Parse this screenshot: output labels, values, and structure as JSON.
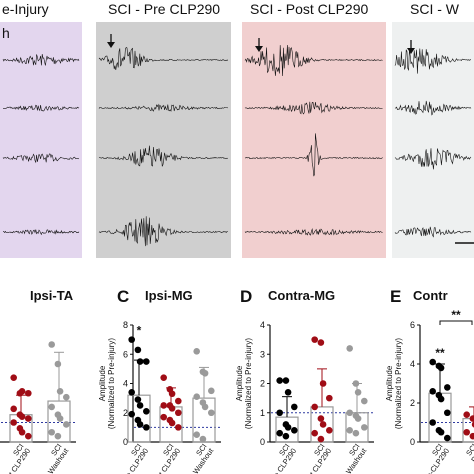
{
  "colors": {
    "pre_injury_bg": "#e3d6ee",
    "pre_clp290_bg": "#cfcfcf",
    "post_clp290_bg": "#f1cfcf",
    "washout_bg": "#eef0f0",
    "dot_black": "#000000",
    "dot_red": "#a00d16",
    "dot_gray": "#9a9a9a",
    "reference_line": "#2f3aa0"
  },
  "traces": {
    "conditions": [
      "e-Injury",
      "SCI - Pre CLP290",
      "SCI - Post CLP290",
      "SCI - W"
    ],
    "corner_label": "h"
  },
  "chart_data": [
    {
      "type": "bar",
      "panel": "",
      "title": "Ipsi-TA",
      "ylabel": "",
      "categories": [
        [
          "SCI",
          "Post CLP290"
        ],
        [
          "SCI",
          "Washout"
        ]
      ],
      "category_labels": [
        "SCI Post CLP290",
        "SCI Washout"
      ],
      "ylim": [
        0,
        6
      ],
      "reference_line": 1,
      "bars": [
        {
          "mean": 1.4,
          "sd": 1.0
        },
        {
          "mean": 2.1,
          "sd": 2.5
        }
      ],
      "points": [
        [
          3.3,
          2.5,
          2.6,
          2.5,
          1.7,
          1.4,
          1.3,
          1.2,
          1.0,
          0.7,
          0.5,
          0.3
        ],
        [
          5.0,
          4.0,
          2.6,
          2.3,
          1.8,
          1.4,
          1.2,
          0.9,
          0.5,
          0.3
        ]
      ],
      "point_colors": [
        "dot_red",
        "dot_gray"
      ]
    },
    {
      "type": "bar",
      "panel": "C",
      "title": "Ipsi-MG",
      "ylabel": "Amplitude\n(Normalized to Pre-injury)",
      "yticks": [
        0,
        2,
        4,
        6,
        8
      ],
      "categories": [
        [
          "SCI",
          "Pre CLP290"
        ],
        [
          "SCI",
          "Post CLP290"
        ],
        [
          "SCI",
          "Washout"
        ]
      ],
      "category_labels": [
        "SCI Pre CLP290",
        "SCI Post CLP290",
        "SCI Washout"
      ],
      "ylim": [
        0,
        8
      ],
      "reference_line": 1,
      "significance": [
        {
          "category": 0,
          "label": "*"
        }
      ],
      "bars": [
        {
          "mean": 3.2,
          "sd": 2.4
        },
        {
          "mean": 2.4,
          "sd": 1.3
        },
        {
          "mean": 3.0,
          "sd": 2.1
        }
      ],
      "points": [
        [
          7.0,
          6.3,
          5.5,
          5.5,
          3.4,
          2.9,
          2.5,
          2.1,
          1.9,
          1.5,
          1.2,
          1.0
        ],
        [
          4.4,
          3.6,
          3.3,
          2.8,
          2.5,
          2.5,
          2.3,
          2.0,
          1.7,
          1.5,
          1.3,
          1.0
        ],
        [
          6.2,
          4.8,
          4.7,
          3.5,
          3.1,
          2.7,
          2.4,
          2.0,
          0.5,
          0.2
        ]
      ],
      "point_colors": [
        "dot_black",
        "dot_red",
        "dot_gray"
      ]
    },
    {
      "type": "bar",
      "panel": "D",
      "title": "Contra-MG",
      "ylabel": "Amplitude\n(Normalized to Pre-injury)",
      "yticks": [
        0,
        1,
        2,
        3,
        4
      ],
      "categories": [
        [
          "SCI",
          "Pre CLP290"
        ],
        [
          "SCI",
          "Post CLP290"
        ],
        [
          "SCI",
          "Washout"
        ]
      ],
      "category_labels": [
        "SCI Pre CLP290",
        "SCI Post CLP290",
        "SCI Washout"
      ],
      "ylim": [
        0,
        4
      ],
      "reference_line": 1,
      "bars": [
        {
          "mean": 0.85,
          "sd": 0.7
        },
        {
          "mean": 1.2,
          "sd": 1.3
        },
        {
          "mean": 1.0,
          "sd": 1.0
        }
      ],
      "points": [
        [
          2.1,
          2.1,
          1.7,
          1.2,
          1.0,
          0.6,
          0.5,
          0.4,
          0.3,
          0.2
        ],
        [
          3.5,
          3.4,
          2.0,
          1.5,
          1.2,
          0.8,
          0.6,
          0.4,
          0.3,
          0.1
        ],
        [
          3.2,
          2.0,
          1.7,
          1.4,
          1.0,
          0.9,
          0.8,
          0.5,
          0.4,
          0.3
        ]
      ],
      "point_colors": [
        "dot_black",
        "dot_red",
        "dot_gray"
      ]
    },
    {
      "type": "bar",
      "panel": "E",
      "title": "Contr",
      "ylabel": "Amplitude\n(Normalized to Pre-injury)",
      "yticks": [
        0,
        2,
        4,
        6
      ],
      "categories": [
        [
          "SCI",
          "Pre-CLP290"
        ],
        [
          "SCI",
          "Post"
        ]
      ],
      "category_labels": [
        "SCI Pre-CLP290",
        "SCI Post"
      ],
      "ylim": [
        0,
        6
      ],
      "reference_line": 1,
      "significance": [
        {
          "category": 0,
          "label": "**"
        },
        {
          "bracket": [
            0,
            1
          ],
          "label": "**"
        }
      ],
      "bars": [
        {
          "mean": 2.5,
          "sd": 1.5
        },
        {
          "mean": 1.2,
          "sd": 0.6
        }
      ],
      "points": [
        [
          4.1,
          3.9,
          3.8,
          2.8,
          2.6,
          2.4,
          2.2,
          1.5,
          1.0,
          0.6,
          0.5,
          0.2
        ],
        [
          1.4,
          1.2,
          0.9,
          0.7,
          0.5,
          0.3
        ]
      ],
      "point_colors": [
        "dot_black",
        "dot_red"
      ]
    }
  ]
}
